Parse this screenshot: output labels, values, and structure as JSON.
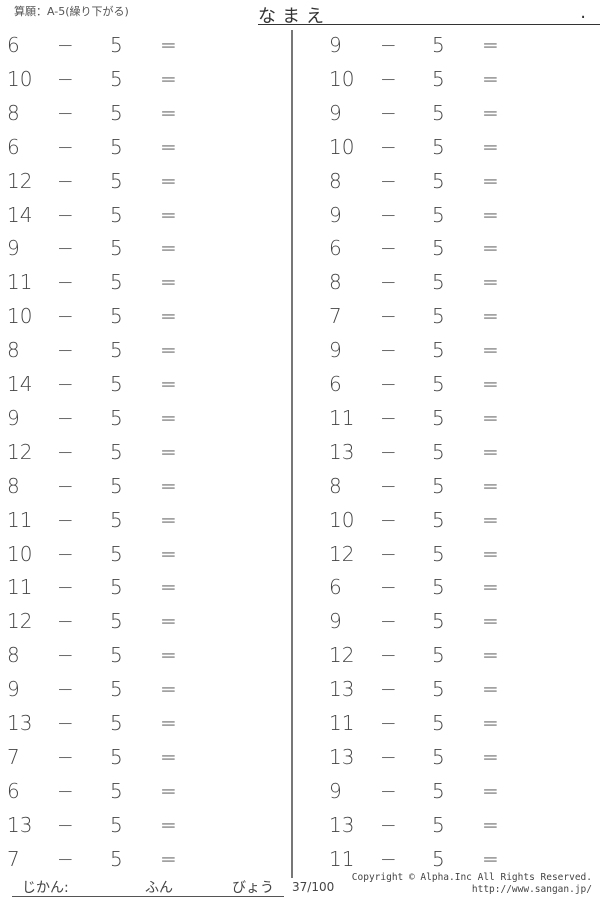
{
  "header": {
    "title": "算願：A-5(繰り下がる)",
    "name_label": "なまえ",
    "name_end": "."
  },
  "operator": "−",
  "subtrahend": "5",
  "equals": "=",
  "left_column": [
    "6",
    "10",
    "8",
    "6",
    "12",
    "14",
    "9",
    "11",
    "10",
    "8",
    "14",
    "9",
    "12",
    "8",
    "11",
    "10",
    "11",
    "12",
    "8",
    "9",
    "13",
    "7",
    "6",
    "13",
    "7"
  ],
  "right_column": [
    "9",
    "10",
    "9",
    "10",
    "8",
    "9",
    "6",
    "8",
    "7",
    "9",
    "6",
    "11",
    "13",
    "8",
    "10",
    "12",
    "6",
    "9",
    "12",
    "13",
    "11",
    "13",
    "9",
    "13",
    "11"
  ],
  "footer": {
    "time_label": "じかん:",
    "minutes_label": "ふん",
    "seconds_label": "びょう",
    "page": "37/100",
    "copyright": "Copyright © Alpha.Inc All Rights Reserved.",
    "url": "http://www.sangan.jp/"
  }
}
